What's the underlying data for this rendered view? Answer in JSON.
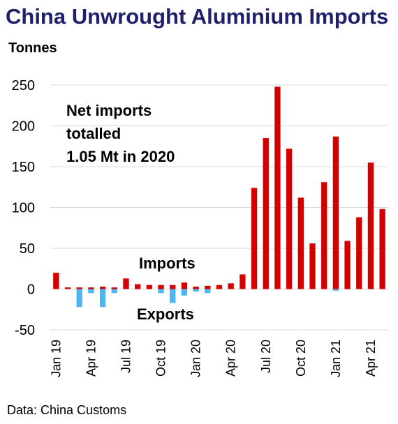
{
  "title": "China Unwrought Aluminium Imports",
  "unit_label": "Tonnes",
  "source": "Data: China Customs",
  "colors": {
    "title": "#1f1f6b",
    "imports": "#d40000",
    "exports": "#4db8f0",
    "grid": "#d9d9d9"
  },
  "chart_data": {
    "type": "bar",
    "categories": [
      "Jan 19",
      "Feb 19",
      "Mar 19",
      "Apr 19",
      "May 19",
      "Jun 19",
      "Jul 19",
      "Aug 19",
      "Sep 19",
      "Oct 19",
      "Nov 19",
      "Dec 19",
      "Jan 20",
      "Feb 20",
      "Mar 20",
      "Apr 20",
      "May 20",
      "Jun 20",
      "Jul 20",
      "Aug 20",
      "Sep 20",
      "Oct 20",
      "Nov 20",
      "Dec 20",
      "Jan 21",
      "Feb 21",
      "Mar 21",
      "Apr 21",
      "May 21"
    ],
    "tick_labels": [
      "Jan 19",
      "Apr 19",
      "Jul 19",
      "Oct 19",
      "Jan 20",
      "Apr 20",
      "Jul 20",
      "Oct 20",
      "Jan 21",
      "Apr 21"
    ],
    "series": [
      {
        "name": "Imports",
        "values": [
          20,
          2,
          2,
          2,
          3,
          2,
          13,
          6,
          5,
          5,
          5,
          8,
          3,
          4,
          5,
          7,
          18,
          124,
          185,
          248,
          172,
          112,
          56,
          131,
          187,
          59,
          88,
          155,
          98
        ]
      },
      {
        "name": "Exports",
        "values": [
          0,
          0,
          -22,
          -5,
          -22,
          -5,
          0,
          0,
          0,
          -5,
          -17,
          -8,
          -3,
          -5,
          0,
          0,
          0,
          0,
          0,
          0,
          0,
          0,
          0,
          0,
          -2,
          0,
          0,
          0,
          0
        ]
      }
    ],
    "ylim": [
      -50,
      250
    ],
    "yticks": [
      -50,
      0,
      50,
      100,
      150,
      200,
      250
    ],
    "grid": true,
    "annotations": [
      "Net imports",
      "totalled",
      "1.05 Mt in 2020"
    ]
  }
}
